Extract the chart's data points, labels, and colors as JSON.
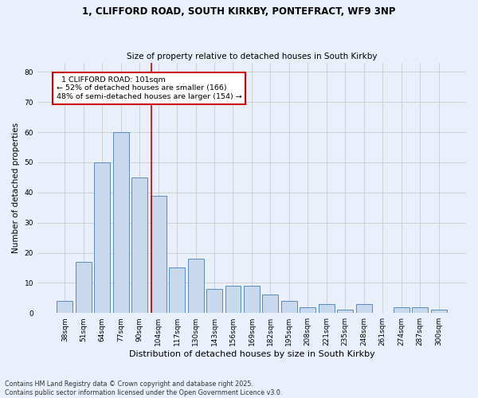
{
  "title1": "1, CLIFFORD ROAD, SOUTH KIRKBY, PONTEFRACT, WF9 3NP",
  "title2": "Size of property relative to detached houses in South Kirkby",
  "xlabel": "Distribution of detached houses by size in South Kirkby",
  "ylabel": "Number of detached properties",
  "categories": [
    "38sqm",
    "51sqm",
    "64sqm",
    "77sqm",
    "90sqm",
    "104sqm",
    "117sqm",
    "130sqm",
    "143sqm",
    "156sqm",
    "169sqm",
    "182sqm",
    "195sqm",
    "208sqm",
    "221sqm",
    "235sqm",
    "248sqm",
    "261sqm",
    "274sqm",
    "287sqm",
    "300sqm"
  ],
  "values": [
    4,
    17,
    50,
    60,
    45,
    39,
    15,
    18,
    8,
    9,
    9,
    6,
    4,
    2,
    3,
    1,
    3,
    0,
    2,
    2,
    1
  ],
  "bar_color": "#c9d9ed",
  "bar_edge_color": "#5a8bbf",
  "property_label": "1 CLIFFORD ROAD: 101sqm",
  "pct_smaller": 52,
  "n_smaller": 166,
  "pct_larger": 48,
  "n_larger": 154,
  "vline_position": 4.62,
  "annotation_box_color": "#ffffff",
  "annotation_box_edge": "#cc0000",
  "vline_color": "#cc0000",
  "ylim": [
    0,
    83
  ],
  "yticks": [
    0,
    10,
    20,
    30,
    40,
    50,
    60,
    70,
    80
  ],
  "grid_color": "#cccccc",
  "bg_color": "#eaf0fb",
  "footer1": "Contains HM Land Registry data © Crown copyright and database right 2025.",
  "footer2": "Contains public sector information licensed under the Open Government Licence v3.0."
}
